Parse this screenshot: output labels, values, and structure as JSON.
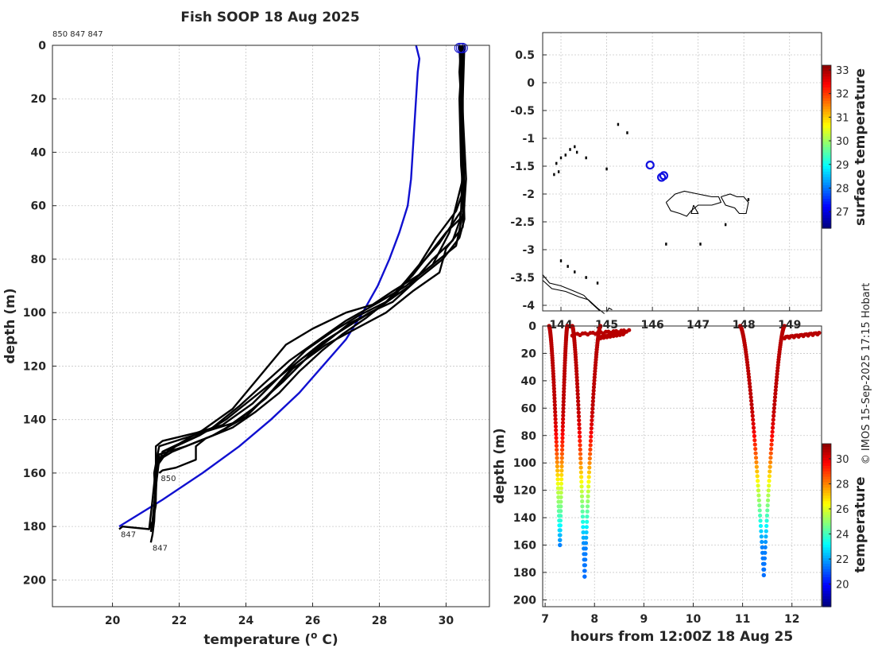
{
  "credit": "© IMOS 15-Sep-2025 17:15 Hobart",
  "chart_data": [
    {
      "type": "line",
      "title": "Fish SOOP 18 Aug 2025",
      "header_ids": "850 847 847",
      "xlabel": "temperature (",
      "xlabel_sup": "o",
      "xlabel_end": " C)",
      "ylabel": "depth (m)",
      "xlim": [
        18.2,
        31.3
      ],
      "ylim": [
        0,
        210
      ],
      "x_ticks": [
        20,
        22,
        24,
        26,
        28,
        30
      ],
      "y_ticks": [
        0,
        20,
        40,
        60,
        80,
        100,
        120,
        140,
        160,
        180,
        200
      ],
      "climatology": {
        "name": "climatology",
        "color": "#1010d0",
        "points": [
          [
            29.1,
            0
          ],
          [
            29.2,
            5
          ],
          [
            29.15,
            10
          ],
          [
            29.1,
            20
          ],
          [
            29.05,
            30
          ],
          [
            29.0,
            40
          ],
          [
            28.95,
            50
          ],
          [
            28.85,
            60
          ],
          [
            28.6,
            70
          ],
          [
            28.3,
            80
          ],
          [
            27.95,
            90
          ],
          [
            27.5,
            100
          ],
          [
            27.0,
            110
          ],
          [
            26.3,
            120
          ],
          [
            25.6,
            130
          ],
          [
            24.75,
            140
          ],
          [
            23.8,
            150
          ],
          [
            22.7,
            160
          ],
          [
            21.5,
            170
          ],
          [
            20.2,
            180
          ]
        ]
      },
      "profiles": [
        {
          "id": "850",
          "label": "850",
          "color": "#000000",
          "points": [
            [
              30.45,
              0
            ],
            [
              30.4,
              10
            ],
            [
              30.45,
              20
            ],
            [
              30.5,
              40
            ],
            [
              30.5,
              55
            ],
            [
              30.3,
              62
            ],
            [
              29.7,
              72
            ],
            [
              29.2,
              82
            ],
            [
              28.8,
              88
            ],
            [
              28.3,
              95
            ],
            [
              27.6,
              102
            ],
            [
              26.9,
              108
            ],
            [
              26.3,
              114
            ],
            [
              25.6,
              122
            ],
            [
              25.0,
              130
            ],
            [
              24.3,
              137
            ],
            [
              23.6,
              143
            ],
            [
              22.8,
              147
            ],
            [
              22.5,
              150
            ],
            [
              22.5,
              155
            ],
            [
              21.9,
              158
            ],
            [
              21.5,
              159
            ],
            [
              21.4,
              160
            ]
          ]
        },
        {
          "id": "847",
          "label": "847",
          "color": "#000000",
          "points": [
            [
              30.5,
              0
            ],
            [
              30.45,
              10
            ],
            [
              30.5,
              30
            ],
            [
              30.55,
              55
            ],
            [
              30.5,
              64
            ],
            [
              30.0,
              70
            ],
            [
              29.5,
              78
            ],
            [
              29.0,
              86
            ],
            [
              28.2,
              96
            ],
            [
              27.4,
              101
            ],
            [
              26.6,
              107
            ],
            [
              25.8,
              114
            ],
            [
              25.0,
              124
            ],
            [
              24.2,
              134
            ],
            [
              23.3,
              142
            ],
            [
              22.5,
              145
            ],
            [
              21.5,
              148
            ],
            [
              21.3,
              150
            ],
            [
              21.3,
              165
            ],
            [
              21.2,
              178
            ],
            [
              21.1,
              181
            ],
            [
              20.3,
              180
            ],
            [
              20.2,
              181
            ]
          ]
        },
        {
          "id": "847b",
          "label": "847",
          "color": "#000000",
          "points": [
            [
              30.4,
              0
            ],
            [
              30.45,
              15
            ],
            [
              30.5,
              35
            ],
            [
              30.5,
              58
            ],
            [
              30.4,
              66
            ],
            [
              30.2,
              73
            ],
            [
              29.6,
              80
            ],
            [
              28.9,
              90
            ],
            [
              28.0,
              98
            ],
            [
              27.2,
              104
            ],
            [
              26.3,
              111
            ],
            [
              25.5,
              119
            ],
            [
              24.8,
              129
            ],
            [
              24.0,
              139
            ],
            [
              23.0,
              146
            ],
            [
              21.8,
              152
            ],
            [
              21.4,
              155
            ],
            [
              21.3,
              165
            ],
            [
              21.25,
              178
            ],
            [
              21.2,
              183
            ],
            [
              21.15,
              186
            ]
          ]
        },
        {
          "id": "p4",
          "label": "",
          "color": "#000000",
          "points": [
            [
              30.5,
              0
            ],
            [
              30.4,
              20
            ],
            [
              30.45,
              45
            ],
            [
              30.55,
              60
            ],
            [
              30.3,
              75
            ],
            [
              29.3,
              85
            ],
            [
              28.4,
              92
            ],
            [
              27.8,
              97
            ],
            [
              27.0,
              100
            ],
            [
              26.0,
              106
            ],
            [
              25.2,
              112
            ],
            [
              24.4,
              124
            ],
            [
              23.6,
              136
            ],
            [
              22.7,
              144
            ],
            [
              22.0,
              149
            ],
            [
              21.5,
              152
            ],
            [
              21.3,
              160
            ],
            [
              21.3,
              170
            ],
            [
              21.2,
              180
            ]
          ]
        },
        {
          "id": "p5",
          "label": "",
          "color": "#000000",
          "points": [
            [
              30.45,
              0
            ],
            [
              30.5,
              25
            ],
            [
              30.6,
              50
            ],
            [
              30.5,
              68
            ],
            [
              30.0,
              76
            ],
            [
              29.8,
              85
            ],
            [
              29.0,
              92
            ],
            [
              28.2,
              100
            ],
            [
              27.3,
              106
            ],
            [
              26.4,
              112
            ],
            [
              25.4,
              121
            ],
            [
              24.6,
              132
            ],
            [
              23.7,
              141
            ],
            [
              22.4,
              146
            ],
            [
              21.4,
              150
            ],
            [
              21.25,
              160
            ],
            [
              21.3,
              172
            ],
            [
              21.15,
              182
            ]
          ]
        },
        {
          "id": "p6",
          "label": "",
          "color": "#000000",
          "points": [
            [
              30.5,
              0
            ],
            [
              30.45,
              30
            ],
            [
              30.5,
              50
            ],
            [
              30.3,
              60
            ],
            [
              30.1,
              70
            ],
            [
              29.6,
              82
            ],
            [
              28.8,
              90
            ],
            [
              28.0,
              96
            ],
            [
              27.0,
              103
            ],
            [
              26.2,
              110
            ],
            [
              25.3,
              118
            ],
            [
              24.5,
              127
            ],
            [
              23.8,
              135
            ],
            [
              23.0,
              143
            ],
            [
              22.4,
              147
            ],
            [
              21.7,
              151
            ],
            [
              21.3,
              158
            ],
            [
              21.2,
              170
            ],
            [
              21.1,
              181
            ]
          ]
        },
        {
          "id": "p7",
          "label": "",
          "color": "#000000",
          "points": [
            [
              30.55,
              0
            ],
            [
              30.5,
              20
            ],
            [
              30.5,
              45
            ],
            [
              30.55,
              65
            ],
            [
              30.4,
              72
            ],
            [
              29.9,
              80
            ],
            [
              29.1,
              88
            ],
            [
              28.4,
              96
            ],
            [
              27.7,
              100
            ],
            [
              26.7,
              108
            ],
            [
              25.9,
              116
            ],
            [
              25.1,
              126
            ],
            [
              24.2,
              136
            ],
            [
              23.2,
              145
            ],
            [
              22.2,
              150
            ],
            [
              21.4,
              153
            ],
            [
              21.3,
              162
            ],
            [
              21.25,
              175
            ]
          ]
        },
        {
          "id": "p8",
          "label": "",
          "color": "#000000",
          "points": [
            [
              30.4,
              0
            ],
            [
              30.5,
              15
            ],
            [
              30.5,
              40
            ],
            [
              30.45,
              62
            ],
            [
              29.8,
              74
            ],
            [
              29.1,
              84
            ],
            [
              28.5,
              93
            ],
            [
              27.9,
              99
            ],
            [
              27.1,
              104
            ],
            [
              26.5,
              110
            ],
            [
              25.7,
              117
            ],
            [
              24.9,
              125
            ],
            [
              24.1,
              133
            ],
            [
              23.4,
              140
            ],
            [
              22.6,
              146
            ],
            [
              21.9,
              150
            ],
            [
              21.35,
              155
            ],
            [
              21.3,
              168
            ],
            [
              21.2,
              180
            ]
          ]
        }
      ],
      "surface_markers": [
        [
          30.4,
          1
        ],
        [
          30.5,
          1
        ],
        [
          30.45,
          1
        ]
      ]
    },
    {
      "type": "scatter",
      "name": "track map",
      "colorbar_label": "surface temperature",
      "colorbar_ticks": [
        27,
        28,
        29,
        30,
        31,
        32,
        33
      ],
      "clim": [
        26.3,
        33.2
      ],
      "xlim": [
        143.6,
        149.7
      ],
      "ylim": [
        -4.1,
        0.9
      ],
      "x_ticks": [
        144,
        145,
        146,
        147,
        148,
        149
      ],
      "x_tick_labels": [
        "144",
        "145",
        "146",
        "147",
        "148",
        "149"
      ],
      "y_ticks": [
        0.5,
        0,
        -0.5,
        -1,
        -1.5,
        -2,
        -2.5,
        -3,
        -3.5,
        -4
      ],
      "stations": [
        [
          145.95,
          -1.48
        ],
        [
          146.2,
          -1.7
        ],
        [
          146.25,
          -1.67
        ]
      ],
      "islands": [
        [
          143.9,
          -1.45
        ],
        [
          144.0,
          -1.35
        ],
        [
          144.1,
          -1.3
        ],
        [
          144.2,
          -1.2
        ],
        [
          144.3,
          -1.15
        ],
        [
          143.95,
          -1.6
        ],
        [
          144.35,
          -1.25
        ],
        [
          144.55,
          -1.35
        ],
        [
          145.25,
          -0.75
        ],
        [
          145.45,
          -0.9
        ],
        [
          145.0,
          -1.55
        ],
        [
          146.3,
          -2.9
        ],
        [
          147.05,
          -2.9
        ],
        [
          144.0,
          -3.2
        ],
        [
          144.15,
          -3.3
        ],
        [
          144.3,
          -3.4
        ],
        [
          144.55,
          -3.5
        ],
        [
          144.8,
          -3.6
        ],
        [
          143.85,
          -1.65
        ],
        [
          148.1,
          -2.1
        ],
        [
          147.6,
          -2.55
        ]
      ]
    },
    {
      "type": "scatter",
      "name": "depth-time",
      "xlabel": "hours from 12:00Z 18 Aug 25",
      "ylabel": "depth (m)",
      "colorbar_label": "temperature",
      "colorbar_ticks": [
        20,
        22,
        24,
        26,
        28,
        30
      ],
      "clim": [
        18.2,
        31.2
      ],
      "xlim": [
        6.95,
        12.6
      ],
      "ylim": [
        0,
        205
      ],
      "x_ticks": [
        7,
        8,
        9,
        10,
        11,
        12
      ],
      "y_ticks": [
        0,
        20,
        40,
        60,
        80,
        100,
        120,
        140,
        160,
        180,
        200
      ],
      "casts": [
        {
          "t0": 7.08,
          "t1": 7.45,
          "tb": 7.3,
          "max_depth": 160
        },
        {
          "t0": 7.55,
          "t1": 8.12,
          "tb": 7.8,
          "max_depth": 183
        },
        {
          "t0": 10.95,
          "t1": 11.85,
          "tb": 11.43,
          "max_depth": 182
        }
      ],
      "surface_legs": [
        [
          7.55,
          8.7,
          6
        ],
        [
          8.12,
          8.6,
          8
        ],
        [
          11.85,
          12.55,
          8
        ]
      ]
    }
  ]
}
